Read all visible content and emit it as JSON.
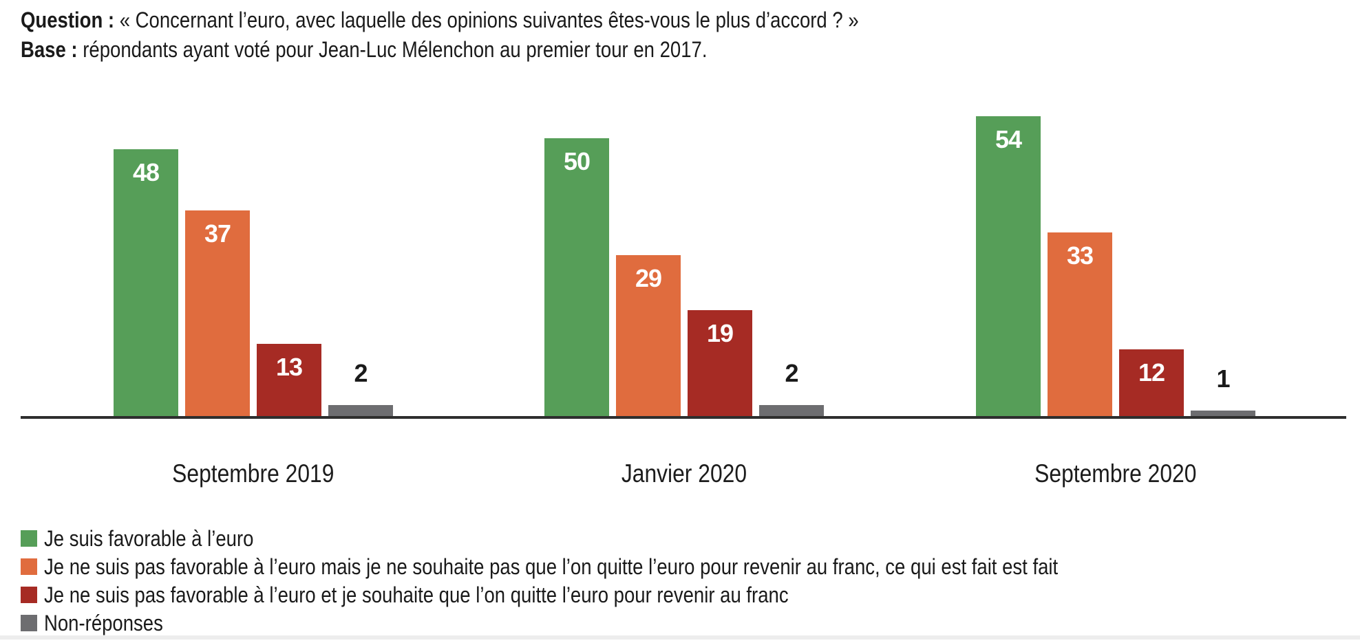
{
  "header": {
    "question_label": "Question :",
    "question_text": "« Concernant l’euro, avec laquelle des opinions suivantes êtes-vous le plus d’accord ? »",
    "base_label": "Base :",
    "base_text": "répondants ayant voté pour Jean-Luc Mélenchon au premier tour en 2017."
  },
  "chart_data": {
    "type": "bar",
    "title": "",
    "categories": [
      "Septembre 2019",
      "Janvier 2020",
      "Septembre 2020"
    ],
    "series": [
      {
        "name": "Je suis favorable à l’euro",
        "color": "#569e58",
        "values": [
          48,
          50,
          54
        ]
      },
      {
        "name": "Je ne suis pas favorable à l’euro mais je ne souhaite pas que l’on quitte l’euro pour revenir au franc, ce qui est fait est fait",
        "color": "#e06c3e",
        "values": [
          37,
          29,
          33
        ]
      },
      {
        "name": "Je ne suis pas favorable à l’euro et je souhaite que l’on quitte l’euro pour revenir au franc",
        "color": "#a62b24",
        "values": [
          13,
          19,
          12
        ]
      },
      {
        "name": "Non-réponses",
        "color": "#6d6d70",
        "values": [
          2,
          2,
          1
        ]
      }
    ],
    "ylim": [
      0,
      60
    ],
    "grid": false,
    "value_labels": true,
    "legend_position": "bottom",
    "value_label_color_inside": "#ffffff",
    "value_label_color_outside": "#1a1a1a",
    "axis_color": "#2e2e2e"
  }
}
